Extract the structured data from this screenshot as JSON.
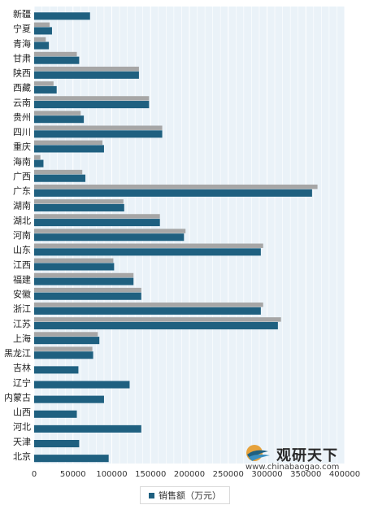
{
  "chart_data": {
    "type": "bar",
    "orientation": "horizontal",
    "categories": [
      "新疆",
      "宁夏",
      "青海",
      "甘肃",
      "陕西",
      "西藏",
      "云南",
      "贵州",
      "四川",
      "重庆",
      "海南",
      "广西",
      "广东",
      "湖南",
      "湖北",
      "河南",
      "山东",
      "江西",
      "福建",
      "安徽",
      "浙江",
      "江苏",
      "上海",
      "黑龙江",
      "吉林",
      "辽宁",
      "内蒙古",
      "山西",
      "河北",
      "天津",
      "北京"
    ],
    "series": [
      {
        "name": "",
        "role": "shadow",
        "color": "#a6a6a6",
        "values": [
          null,
          20000,
          15000,
          55000,
          135000,
          25000,
          148000,
          60000,
          165000,
          88000,
          8000,
          62000,
          365000,
          115000,
          162000,
          195000,
          295000,
          102000,
          128000,
          138000,
          295000,
          318000,
          82000,
          75000,
          null,
          null,
          null,
          null,
          null,
          null,
          null
        ]
      },
      {
        "name": "销售额（万元）",
        "color": "#1f6080",
        "values": [
          72000,
          23000,
          19000,
          58000,
          135000,
          29000,
          148000,
          64000,
          165000,
          90000,
          12000,
          66000,
          358000,
          116000,
          162000,
          193000,
          292000,
          103000,
          128000,
          138000,
          292000,
          314000,
          84000,
          76000,
          57000,
          123000,
          90000,
          55000,
          138000,
          58000,
          96000
        ]
      }
    ],
    "xlim": [
      0,
      400000
    ],
    "xticks": [
      "0",
      "50000",
      "100000",
      "150000",
      "200000",
      "250000",
      "300000",
      "350000",
      "400000"
    ],
    "xtick_values": [
      0,
      50000,
      100000,
      150000,
      200000,
      250000,
      300000,
      350000,
      400000
    ],
    "grid": true,
    "legend": "bottom-center",
    "plot_background": "#eaf2f8",
    "gridline_color": "#ffffff"
  },
  "legend": {
    "label": "销售额（万元）",
    "color": "#1f6080"
  },
  "watermark": {
    "name": "观研天下",
    "url": "www.chinabaogao.com"
  }
}
